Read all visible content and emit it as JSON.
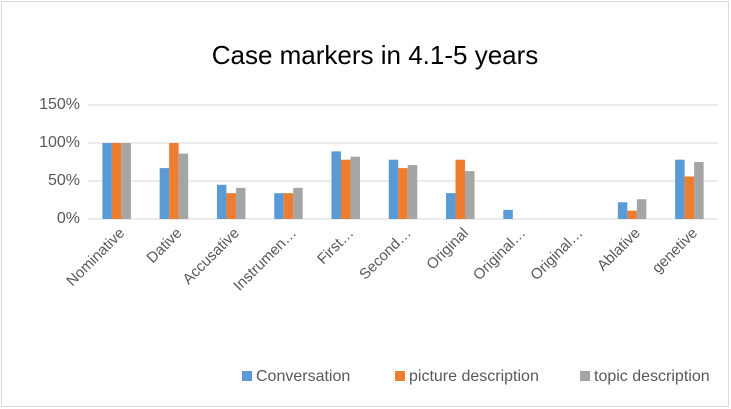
{
  "chart_data": {
    "type": "bar",
    "title": "Case markers in 4.1-5 years",
    "categories": [
      "Nominative",
      "Dative",
      "Accusative",
      "Instrumen…",
      "First…",
      "Second…",
      "Original",
      "Original…",
      "Original…",
      "Ablative",
      "genetive"
    ],
    "series": [
      {
        "name": "Conversation",
        "color": "#5b9bd5",
        "values": [
          100,
          67,
          45,
          34,
          89,
          78,
          34,
          12,
          0,
          22,
          78
        ]
      },
      {
        "name": "picture description",
        "color": "#ed7d31",
        "values": [
          100,
          100,
          34,
          34,
          78,
          67,
          78,
          0,
          0,
          11,
          56
        ]
      },
      {
        "name": "topic description",
        "color": "#a5a5a5",
        "values": [
          100,
          86,
          41,
          41,
          82,
          71,
          63,
          0,
          0,
          26,
          75
        ]
      }
    ],
    "ylim": [
      0,
      150
    ],
    "yticks": [
      {
        "value": 0,
        "label": "0%"
      },
      {
        "value": 50,
        "label": "50%"
      },
      {
        "value": 100,
        "label": "100%"
      },
      {
        "value": 150,
        "label": "150%"
      }
    ],
    "grid": true,
    "legend": "bottom"
  }
}
